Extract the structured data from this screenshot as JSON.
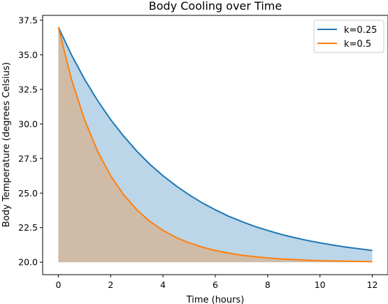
{
  "chart_data": {
    "type": "area",
    "title": "Body Cooling over Time",
    "xlabel": "Time (hours)",
    "ylabel": "Body Temperature (degrees Celsius)",
    "xlim": [
      -0.6,
      12.6
    ],
    "ylim": [
      19.1,
      37.85
    ],
    "xticks": [
      0,
      2,
      4,
      6,
      8,
      10,
      12
    ],
    "xtick_labels": [
      "0",
      "2",
      "4",
      "6",
      "8",
      "10",
      "12"
    ],
    "yticks": [
      20.0,
      22.5,
      25.0,
      27.5,
      30.0,
      32.5,
      35.0,
      37.5
    ],
    "ytick_labels": [
      "20.0",
      "22.5",
      "25.0",
      "27.5",
      "30.0",
      "32.5",
      "35.0",
      "37.5"
    ],
    "fill_baseline": 20.0,
    "grid": false,
    "legend_position": "top-right",
    "x": [
      0,
      0.5,
      1,
      1.5,
      2,
      2.5,
      3,
      3.5,
      4,
      4.5,
      5,
      5.5,
      6,
      6.5,
      7,
      7.5,
      8,
      8.5,
      9,
      9.5,
      10,
      10.5,
      11,
      11.5,
      12
    ],
    "series": [
      {
        "name": "k=0.25",
        "color": "#1f77b4",
        "fill_color": "#1f77b4",
        "values": [
          37.0,
          35.0,
          33.24,
          31.69,
          30.31,
          29.11,
          28.03,
          27.08,
          26.25,
          25.52,
          24.87,
          24.29,
          23.79,
          23.33,
          22.95,
          22.59,
          22.3,
          22.02,
          21.79,
          21.58,
          21.4,
          21.24,
          21.09,
          20.97,
          20.85
        ]
      },
      {
        "name": "k=0.5",
        "color": "#ff7f0e",
        "fill_color": "#ff7f0e",
        "values": [
          37.0,
          33.24,
          30.31,
          28.03,
          26.25,
          24.87,
          23.79,
          22.95,
          22.3,
          21.79,
          21.4,
          21.09,
          20.85,
          20.66,
          20.51,
          20.4,
          20.31,
          20.24,
          20.19,
          20.15,
          20.11,
          20.09,
          20.07,
          20.06,
          20.04
        ]
      }
    ]
  }
}
